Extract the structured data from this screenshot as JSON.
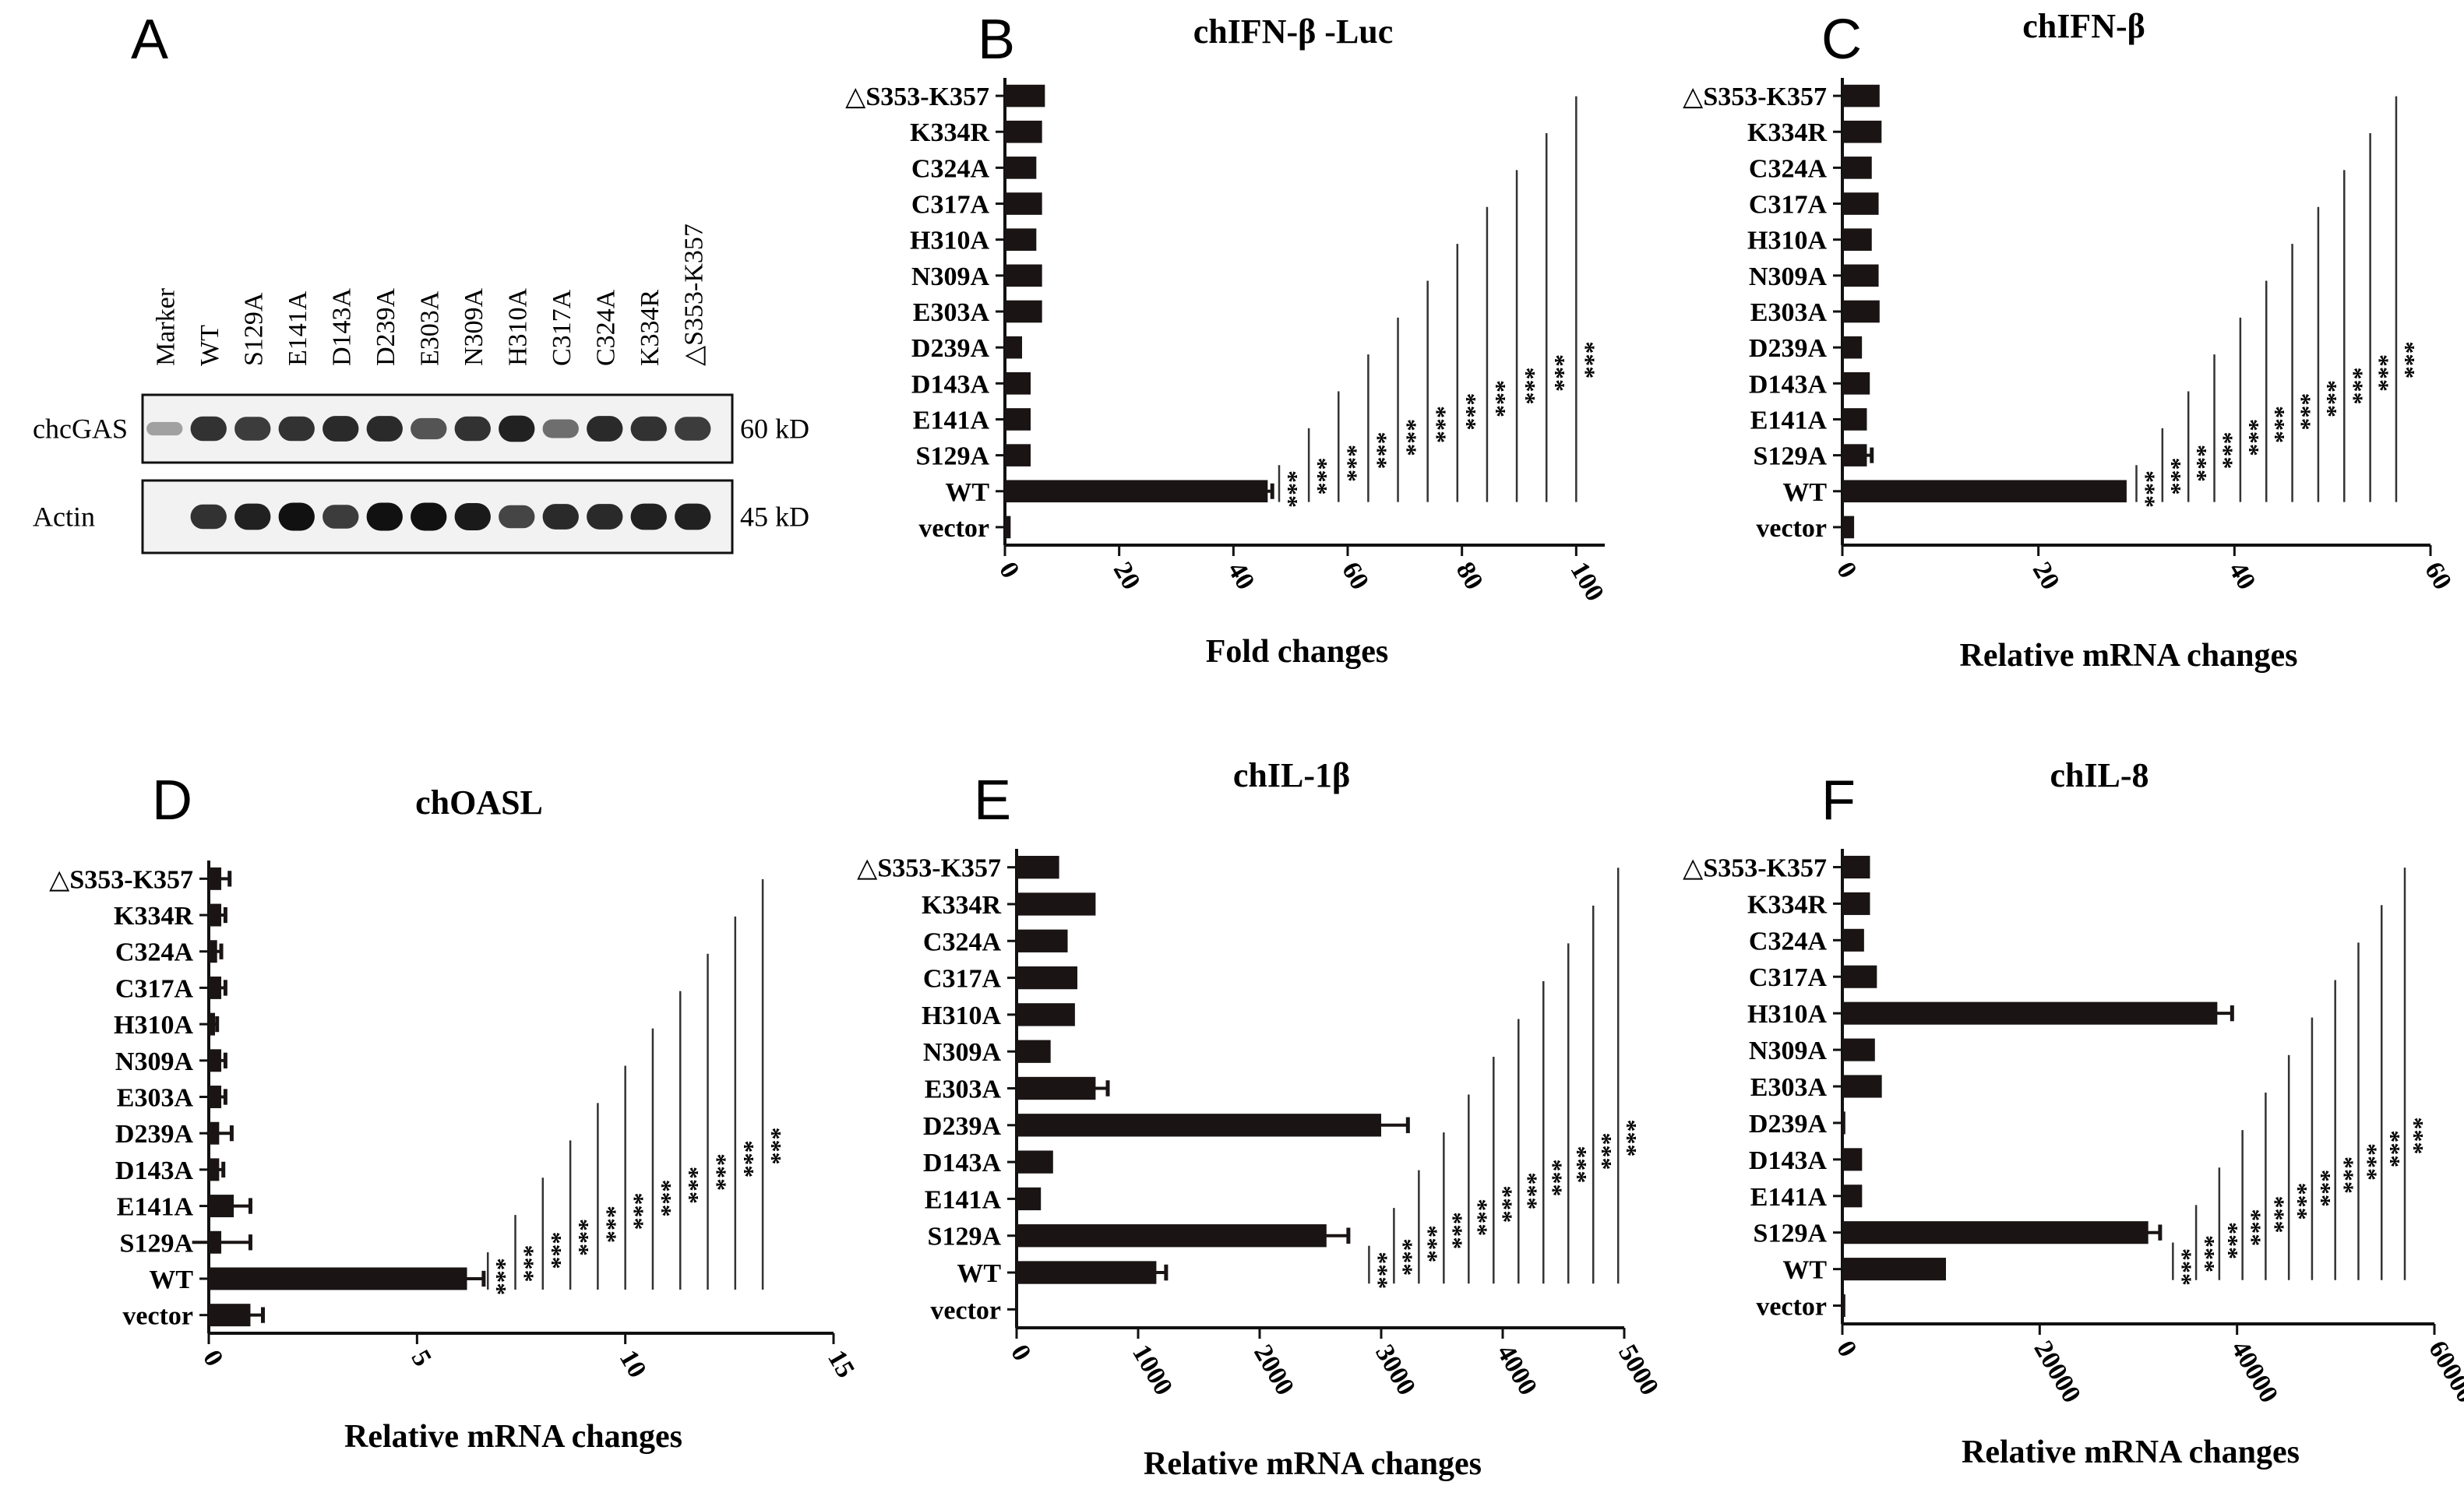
{
  "panel_letters": [
    "A",
    "B",
    "C",
    "D",
    "E",
    "F"
  ],
  "western_blot": {
    "lane_labels": [
      "Marker",
      "WT",
      "S129A",
      "E141A",
      "D143A",
      "D239A",
      "E303A",
      "N309A",
      "H310A",
      "C317A",
      "C324A",
      "K334R",
      "△S353-K357"
    ],
    "rows": [
      {
        "label": "chcGAS",
        "size": "60 kD",
        "band_intensity": [
          0.15,
          0.8,
          0.75,
          0.8,
          0.85,
          0.85,
          0.6,
          0.8,
          0.9,
          0.45,
          0.85,
          0.8,
          0.75
        ]
      },
      {
        "label": "Actin",
        "size": "45 kD",
        "band_intensity": [
          0.0,
          0.8,
          0.9,
          1.0,
          0.75,
          1.0,
          1.0,
          0.95,
          0.7,
          0.85,
          0.85,
          0.9,
          0.9
        ]
      }
    ]
  },
  "chart_data": [
    {
      "panel": "B",
      "type": "bar",
      "orientation": "horizontal",
      "title": "chIFN-β -Luc",
      "xlabel": "Fold changes",
      "ylabel": "",
      "xlim": [
        0,
        105
      ],
      "xticks": [
        "0",
        "20",
        "40",
        "60",
        "80",
        "100"
      ],
      "xtick_values": [
        0,
        20,
        40,
        60,
        80,
        100
      ],
      "categories": [
        "△S353-K357",
        "K334R",
        "C324A",
        "C317A",
        "H310A",
        "N309A",
        "E303A",
        "D239A",
        "D143A",
        "E141A",
        "S129A",
        "WT",
        "vector"
      ],
      "values": [
        7,
        6.5,
        5.5,
        6.5,
        5.5,
        6.5,
        6.5,
        3,
        4.5,
        4.5,
        4.5,
        46,
        1
      ],
      "errors": [
        0,
        0,
        0,
        0,
        0,
        0,
        0,
        0,
        0,
        0,
        0,
        0.8,
        0
      ],
      "significance": "***",
      "sig_count": 11,
      "sig_x_start": 48,
      "sig_x_step": 5.2
    },
    {
      "panel": "C",
      "type": "bar",
      "orientation": "horizontal",
      "title": "chIFN-β",
      "xlabel": "Relative mRNA changes",
      "ylabel": "",
      "xlim": [
        0,
        60
      ],
      "xticks": [
        "0",
        "20",
        "40",
        "60"
      ],
      "xtick_values": [
        0,
        20,
        40,
        60
      ],
      "categories": [
        "△S353-K357",
        "K334R",
        "C324A",
        "C317A",
        "H310A",
        "N309A",
        "E303A",
        "D239A",
        "D143A",
        "E141A",
        "S129A",
        "WT",
        "vector"
      ],
      "values": [
        3.8,
        4,
        3,
        3.7,
        3,
        3.7,
        3.8,
        2,
        2.8,
        2.5,
        2.5,
        29,
        1.2
      ],
      "errors": [
        0,
        0,
        0,
        0,
        0,
        0,
        0,
        0,
        0,
        0,
        0.5,
        0,
        0
      ],
      "significance": "***",
      "sig_count": 11,
      "sig_x_start": 30,
      "sig_x_step": 2.65
    },
    {
      "panel": "D",
      "type": "bar",
      "orientation": "horizontal",
      "title": "chOASL",
      "xlabel": "Relative mRNA changes",
      "ylabel": "",
      "xlim": [
        0,
        15
      ],
      "xticks": [
        "0",
        "5",
        "10",
        "15"
      ],
      "xtick_values": [
        0,
        5,
        10,
        15
      ],
      "categories": [
        "△S353-K357",
        "K334R",
        "C324A",
        "C317A",
        "H310A",
        "N309A",
        "E303A",
        "D239A",
        "D143A",
        "E141A",
        "S129A",
        "WT",
        "vector"
      ],
      "values": [
        0.3,
        0.3,
        0.2,
        0.3,
        0.15,
        0.3,
        0.3,
        0.25,
        0.25,
        0.6,
        0.3,
        6.2,
        1.0
      ],
      "errors": [
        0.2,
        0.1,
        0.1,
        0.1,
        0.05,
        0.1,
        0.1,
        0.3,
        0.1,
        0.4,
        0.7,
        0.4,
        0.3
      ],
      "significance": "***",
      "sig_count": 11,
      "sig_x_start": 6.7,
      "sig_x_step": 0.66
    },
    {
      "panel": "E",
      "type": "bar",
      "orientation": "horizontal",
      "title": "chIL-1β",
      "xlabel": "Relative mRNA changes",
      "ylabel": "",
      "xlim": [
        0,
        5000
      ],
      "xticks": [
        "0",
        "1000",
        "2000",
        "3000",
        "4000",
        "5000"
      ],
      "xtick_values": [
        0,
        1000,
        2000,
        3000,
        4000,
        5000
      ],
      "categories": [
        "△S353-K357",
        "K334R",
        "C324A",
        "C317A",
        "H310A",
        "N309A",
        "E303A",
        "D239A",
        "D143A",
        "E141A",
        "S129A",
        "WT",
        "vector"
      ],
      "values": [
        350,
        650,
        420,
        500,
        480,
        280,
        650,
        3000,
        300,
        200,
        2550,
        1150,
        10
      ],
      "errors": [
        0,
        0,
        0,
        0,
        0,
        0,
        100,
        220,
        0,
        0,
        180,
        80,
        0
      ],
      "significance": "***",
      "sig_count": 11,
      "sig_x_start": 2900,
      "sig_x_step": 205
    },
    {
      "panel": "F",
      "type": "bar",
      "orientation": "horizontal",
      "title": "chIL-8",
      "xlabel": "Relative mRNA changes",
      "ylabel": "",
      "xlim": [
        0,
        60000
      ],
      "xticks": [
        "0",
        "20000",
        "40000",
        "60000"
      ],
      "xtick_values": [
        0,
        20000,
        40000,
        60000
      ],
      "categories": [
        "△S353-K357",
        "K334R",
        "C324A",
        "C317A",
        "H310A",
        "N309A",
        "E303A",
        "D239A",
        "D143A",
        "E141A",
        "S129A",
        "WT",
        "vector"
      ],
      "values": [
        2800,
        2800,
        2200,
        3500,
        38000,
        3300,
        4000,
        300,
        2000,
        2000,
        31000,
        10500,
        300
      ],
      "errors": [
        0,
        0,
        0,
        0,
        1500,
        0,
        0,
        0,
        0,
        0,
        1200,
        0,
        0
      ],
      "significance": "***",
      "sig_count": 11,
      "sig_x_start": 33500,
      "sig_x_step": 2350
    }
  ]
}
